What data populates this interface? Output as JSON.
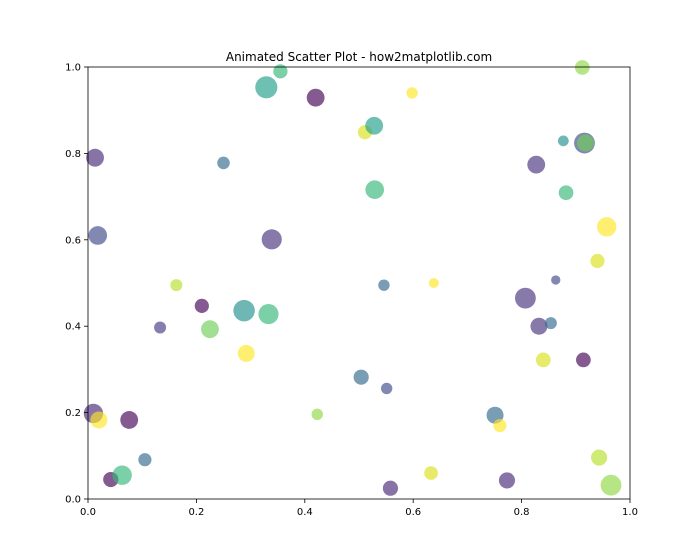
{
  "chart_data": {
    "type": "scatter",
    "title": "Animated Scatter Plot - how2matplotlib.com",
    "xlabel": "",
    "ylabel": "",
    "xlim": [
      0,
      1
    ],
    "ylim": [
      0,
      1
    ],
    "xticks": [
      "0.0",
      "0.2",
      "0.4",
      "0.6",
      "0.8",
      "1.0"
    ],
    "yticks": [
      "0.0",
      "0.2",
      "0.4",
      "0.6",
      "0.8",
      "1.0"
    ],
    "grid": false,
    "marker_opacity": 0.65,
    "colormap": "viridis",
    "points": [
      {
        "x": 0.013,
        "y": 0.79,
        "size": 110,
        "color": "#482878"
      },
      {
        "x": 0.018,
        "y": 0.61,
        "size": 120,
        "color": "#3e4a89"
      },
      {
        "x": 0.01,
        "y": 0.198,
        "size": 130,
        "color": "#482878"
      },
      {
        "x": 0.02,
        "y": 0.183,
        "size": 100,
        "color": "#fde725"
      },
      {
        "x": 0.042,
        "y": 0.045,
        "size": 80,
        "color": "#440154"
      },
      {
        "x": 0.063,
        "y": 0.055,
        "size": 130,
        "color": "#35b779"
      },
      {
        "x": 0.076,
        "y": 0.183,
        "size": 110,
        "color": "#440154"
      },
      {
        "x": 0.105,
        "y": 0.091,
        "size": 60,
        "color": "#31688e"
      },
      {
        "x": 0.133,
        "y": 0.397,
        "size": 50,
        "color": "#443983"
      },
      {
        "x": 0.163,
        "y": 0.495,
        "size": 50,
        "color": "#b5de2b"
      },
      {
        "x": 0.21,
        "y": 0.447,
        "size": 70,
        "color": "#440154"
      },
      {
        "x": 0.225,
        "y": 0.393,
        "size": 110,
        "color": "#6ece58"
      },
      {
        "x": 0.25,
        "y": 0.778,
        "size": 55,
        "color": "#31688e"
      },
      {
        "x": 0.288,
        "y": 0.436,
        "size": 160,
        "color": "#21918c"
      },
      {
        "x": 0.292,
        "y": 0.337,
        "size": 100,
        "color": "#fde725"
      },
      {
        "x": 0.329,
        "y": 0.953,
        "size": 170,
        "color": "#1f9e89"
      },
      {
        "x": 0.333,
        "y": 0.428,
        "size": 140,
        "color": "#35b779"
      },
      {
        "x": 0.339,
        "y": 0.601,
        "size": 140,
        "color": "#46327e"
      },
      {
        "x": 0.355,
        "y": 0.99,
        "size": 70,
        "color": "#35b779"
      },
      {
        "x": 0.42,
        "y": 0.929,
        "size": 110,
        "color": "#440154"
      },
      {
        "x": 0.423,
        "y": 0.196,
        "size": 45,
        "color": "#8fd744"
      },
      {
        "x": 0.504,
        "y": 0.282,
        "size": 80,
        "color": "#31688e"
      },
      {
        "x": 0.511,
        "y": 0.849,
        "size": 70,
        "color": "#d8e219"
      },
      {
        "x": 0.528,
        "y": 0.864,
        "size": 110,
        "color": "#1f9e89"
      },
      {
        "x": 0.529,
        "y": 0.716,
        "size": 120,
        "color": "#35b779"
      },
      {
        "x": 0.546,
        "y": 0.495,
        "size": 45,
        "color": "#31688e"
      },
      {
        "x": 0.551,
        "y": 0.256,
        "size": 45,
        "color": "#3e4a89"
      },
      {
        "x": 0.558,
        "y": 0.025,
        "size": 80,
        "color": "#482878"
      },
      {
        "x": 0.598,
        "y": 0.94,
        "size": 45,
        "color": "#fde725"
      },
      {
        "x": 0.633,
        "y": 0.06,
        "size": 65,
        "color": "#d8e219"
      },
      {
        "x": 0.638,
        "y": 0.5,
        "size": 35,
        "color": "#fde725"
      },
      {
        "x": 0.751,
        "y": 0.194,
        "size": 100,
        "color": "#31688e"
      },
      {
        "x": 0.76,
        "y": 0.17,
        "size": 60,
        "color": "#fde725"
      },
      {
        "x": 0.773,
        "y": 0.043,
        "size": 90,
        "color": "#482878"
      },
      {
        "x": 0.807,
        "y": 0.465,
        "size": 150,
        "color": "#46327e"
      },
      {
        "x": 0.827,
        "y": 0.774,
        "size": 110,
        "color": "#46327e"
      },
      {
        "x": 0.832,
        "y": 0.4,
        "size": 100,
        "color": "#46327e"
      },
      {
        "x": 0.84,
        "y": 0.322,
        "size": 75,
        "color": "#d8e219"
      },
      {
        "x": 0.854,
        "y": 0.407,
        "size": 50,
        "color": "#31688e"
      },
      {
        "x": 0.863,
        "y": 0.507,
        "size": 30,
        "color": "#3e4a89"
      },
      {
        "x": 0.877,
        "y": 0.829,
        "size": 40,
        "color": "#21918c"
      },
      {
        "x": 0.882,
        "y": 0.709,
        "size": 75,
        "color": "#35b779"
      },
      {
        "x": 0.912,
        "y": 0.999,
        "size": 75,
        "color": "#8fd744"
      },
      {
        "x": 0.914,
        "y": 0.322,
        "size": 75,
        "color": "#440154"
      },
      {
        "x": 0.916,
        "y": 0.824,
        "size": 150,
        "color": "#3e4a89"
      },
      {
        "x": 0.918,
        "y": 0.824,
        "size": 100,
        "color": "#6ece58"
      },
      {
        "x": 0.94,
        "y": 0.551,
        "size": 70,
        "color": "#d8e219"
      },
      {
        "x": 0.943,
        "y": 0.096,
        "size": 90,
        "color": "#b5de2b"
      },
      {
        "x": 0.957,
        "y": 0.63,
        "size": 130,
        "color": "#fde725"
      },
      {
        "x": 0.965,
        "y": 0.032,
        "size": 150,
        "color": "#8fd744"
      }
    ]
  }
}
